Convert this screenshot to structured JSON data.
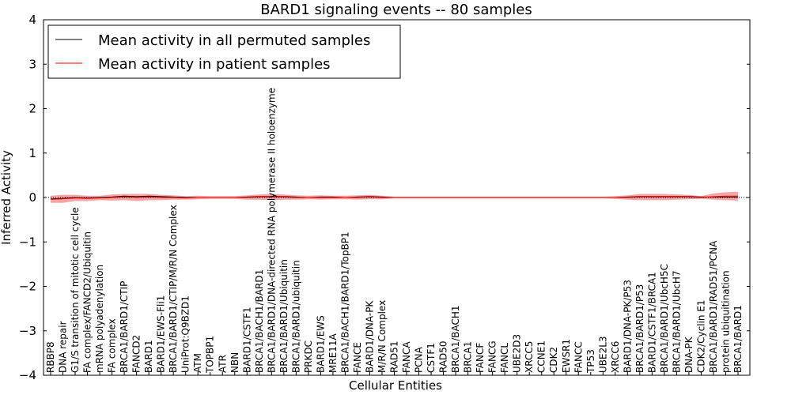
{
  "chart_data": {
    "type": "line",
    "title": "BARD1 signaling events -- 80 samples",
    "xlabel": "Cellular Entities",
    "ylabel": "Inferred Activity",
    "ylim": [
      -4,
      4
    ],
    "yticks": [
      4,
      3,
      2,
      1,
      0,
      -1,
      -2,
      -3,
      -4
    ],
    "ytick_labels": [
      "4",
      "3",
      "2",
      "1",
      "0",
      "−1",
      "−2",
      "−3",
      "−4"
    ],
    "legend": {
      "placement": "top-left",
      "entries": [
        {
          "label": "Mean activity in all permuted samples",
          "color": "#000000"
        },
        {
          "label": "Mean activity in patient samples",
          "color": "#ff0000"
        }
      ]
    },
    "categories": [
      "RBBP8",
      "DNA repair",
      "G1/S transition of mitotic cell cycle",
      "FA complex/FANCD2/Ubiquitin",
      "mRNA polyadenylation",
      "FA complex",
      "BRCA1/BARD1/CTIP",
      "FANCD2",
      "BARD1",
      "BARD1/EWS-Fli1",
      "BRCA1/BARD1/CTIP/M/R/N Complex",
      "UniProt:Q9BZD1",
      "ATM",
      "TOPBP1",
      "ATR",
      "NBN",
      "BARD1/CSTF1",
      "BRCA1/BACH1/BARD1",
      "BRCA1/BARD1/DNA-directed RNA polymerase II holoenzyme",
      "BRCA1/BARD1/Ubiquitin",
      "BRCA1/BARD1/ubiquitin",
      "PRKDC",
      "BARD1/EWS",
      "MRE11A",
      "BRCA1/BACH1/BARD1/TopBP1",
      "FANCE",
      "BARD1/DNA-PK",
      "M/R/N Complex",
      "RAD51",
      "FANCA",
      "PCNA",
      "CSTF1",
      "RAD50",
      "BRCA1/BACH1",
      "BRCA1",
      "FANCF",
      "FANCG",
      "FANCL",
      "UBE2D3",
      "XRCC5",
      "CCNE1",
      "CDK2",
      "EWSR1",
      "FANCC",
      "TP53",
      "UBE2L3",
      "XRCC6",
      "BARD1/DNA-PK/P53",
      "BRCA1/BARD1/P53",
      "BARD1/CSTF1/BRCA1",
      "BRCA1/BARD1/UbcH5C",
      "BRCA1/BARD1/UbcH7",
      "DNA-PK",
      "CDK2/Cyclin E1",
      "BRCA1/BARD1/RAD51/PCNA",
      "protein ubiquitination",
      "BRCA1/BARD1"
    ],
    "series": [
      {
        "name": "Mean activity in all permuted samples",
        "color": "#000000",
        "values": [
          -0.03,
          -0.02,
          0.0,
          -0.01,
          0.0,
          0.01,
          0.03,
          0.02,
          0.03,
          0.02,
          0.01,
          0.0,
          0.0,
          0.0,
          0.0,
          0.0,
          0.01,
          0.02,
          0.02,
          0.02,
          0.01,
          0.0,
          0.01,
          0.01,
          0.0,
          0.01,
          0.02,
          0.01,
          0.0,
          0.0,
          0.0,
          0.0,
          0.0,
          0.0,
          0.0,
          0.0,
          0.0,
          0.0,
          0.0,
          0.0,
          0.0,
          0.0,
          0.0,
          0.0,
          0.0,
          0.0,
          0.0,
          0.01,
          0.02,
          0.02,
          0.02,
          0.02,
          0.02,
          0.01,
          0.01,
          0.01,
          0.01
        ]
      },
      {
        "name": "Mean activity in patient samples",
        "color": "#ff0000",
        "values": [
          -0.04,
          -0.03,
          -0.01,
          -0.02,
          -0.01,
          0.0,
          0.01,
          0.0,
          0.01,
          0.0,
          0.0,
          -0.01,
          0.0,
          0.0,
          0.0,
          0.0,
          0.0,
          0.01,
          0.01,
          0.01,
          0.0,
          0.0,
          0.0,
          0.0,
          0.0,
          0.0,
          0.01,
          0.0,
          0.0,
          0.0,
          0.0,
          0.0,
          0.0,
          0.0,
          0.0,
          0.0,
          0.0,
          0.0,
          0.0,
          0.0,
          0.0,
          0.0,
          0.0,
          0.0,
          0.0,
          0.0,
          0.0,
          0.0,
          0.01,
          0.01,
          0.01,
          0.01,
          0.01,
          0.0,
          0.02,
          0.03,
          0.03
        ],
        "band": [
          0.08,
          0.09,
          0.07,
          0.06,
          0.05,
          0.07,
          0.07,
          0.08,
          0.07,
          0.06,
          0.05,
          0.04,
          0.04,
          0.03,
          0.03,
          0.03,
          0.05,
          0.06,
          0.07,
          0.06,
          0.05,
          0.04,
          0.05,
          0.04,
          0.04,
          0.05,
          0.05,
          0.04,
          0.02,
          0.02,
          0.02,
          0.02,
          0.02,
          0.02,
          0.02,
          0.02,
          0.02,
          0.02,
          0.02,
          0.02,
          0.02,
          0.02,
          0.02,
          0.02,
          0.02,
          0.02,
          0.03,
          0.05,
          0.07,
          0.07,
          0.07,
          0.06,
          0.05,
          0.03,
          0.07,
          0.09,
          0.1
        ]
      }
    ],
    "baseline": {
      "value": 0,
      "style": "dotted"
    }
  }
}
